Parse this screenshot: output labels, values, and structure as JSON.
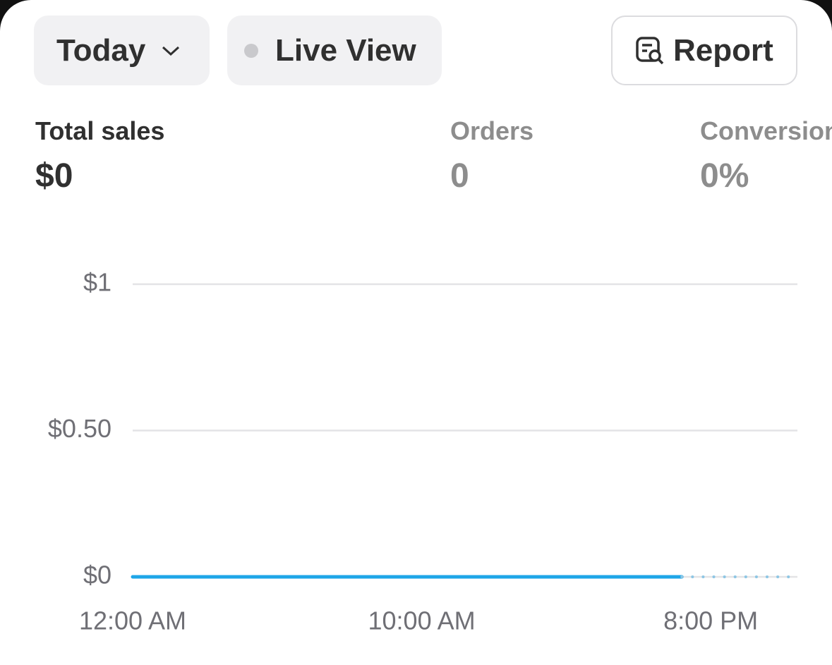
{
  "toolbar": {
    "period": "Today",
    "live": "Live View",
    "report": "Report"
  },
  "metrics": [
    {
      "label": "Total sales",
      "value": "$0"
    },
    {
      "label": "Orders",
      "value": "0"
    },
    {
      "label": "Conversion",
      "value": "0%"
    }
  ],
  "chart_data": {
    "type": "line",
    "xlim": [
      0,
      23
    ],
    "xticks": [
      {
        "value": 0,
        "label": "12:00 AM"
      },
      {
        "value": 10,
        "label": "10:00 AM"
      },
      {
        "value": 20,
        "label": "8:00 PM"
      }
    ],
    "ylim": [
      0,
      1
    ],
    "yticks": [
      {
        "value": 0,
        "label": "$0"
      },
      {
        "value": 0.5,
        "label": "$0.50"
      },
      {
        "value": 1,
        "label": "$1"
      }
    ],
    "grid": true,
    "series": [
      {
        "color": "#1fa6e8",
        "style": "solid",
        "x": [
          0,
          1,
          2,
          3,
          4,
          5,
          6,
          7,
          8,
          9,
          10,
          11,
          12,
          13,
          14,
          15,
          16,
          17,
          18,
          19
        ],
        "values": [
          0,
          0,
          0,
          0,
          0,
          0,
          0,
          0,
          0,
          0,
          0,
          0,
          0,
          0,
          0,
          0,
          0,
          0,
          0,
          0
        ]
      },
      {
        "color": "#8ec6e4",
        "style": "dotted",
        "x": [
          19,
          20,
          21,
          22,
          23
        ],
        "values": [
          0,
          0,
          0,
          0,
          0
        ]
      }
    ]
  }
}
